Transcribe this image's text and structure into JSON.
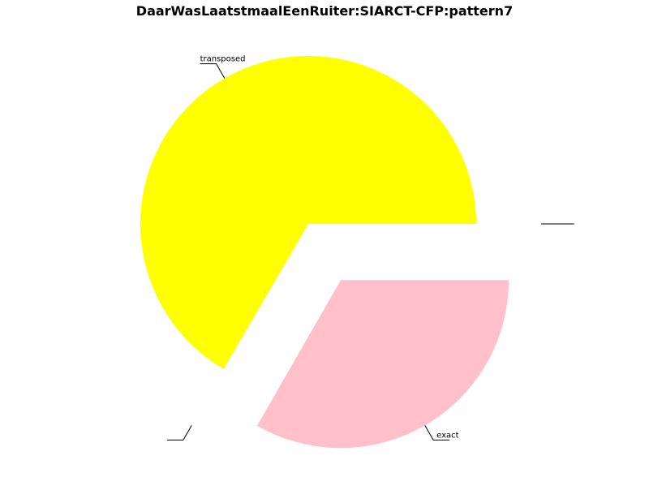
{
  "chart_data": {
    "type": "pie",
    "title": "DaarWasLaatstmaalEenRuiter:SIARCT-CFP:pattern7",
    "slices": [
      {
        "label": "transposed",
        "value": 66.6,
        "color": "#ffff00",
        "exploded": false
      },
      {
        "label": "",
        "value": 0.1,
        "color": "#ffffff",
        "exploded": true
      },
      {
        "label": "exact",
        "value": 33.3,
        "color": "#ffc0cb",
        "exploded": true
      },
      {
        "label": "",
        "value": 0.0,
        "color": "#ffffff",
        "exploded": true
      }
    ],
    "start_angle_deg": 0,
    "direction": "counterclockwise",
    "legend": "none"
  }
}
